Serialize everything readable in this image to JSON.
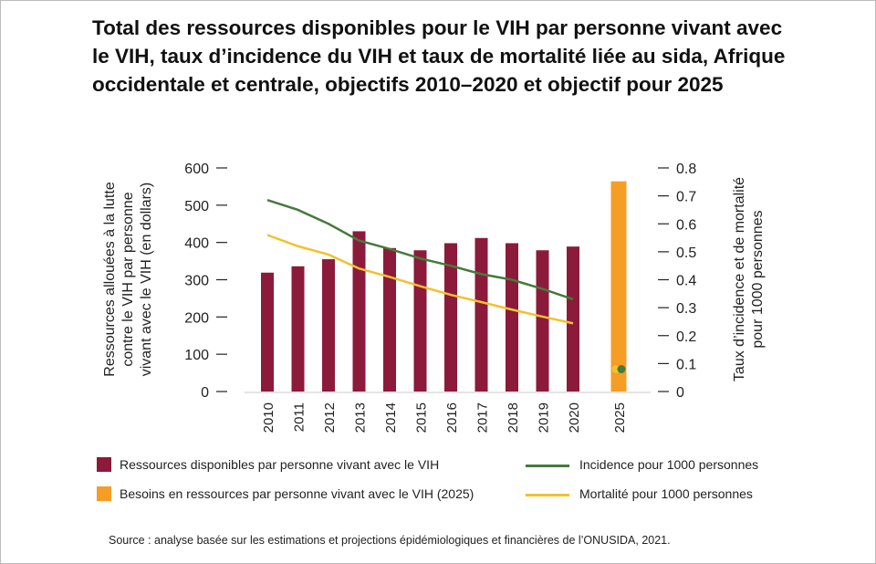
{
  "title": "Total des ressources disponibles pour le VIH par personne vivant avec le VIH, taux d’incidence du VIH et taux de mortalité liée au sida, Afrique occidentale et centrale, objectifs 2010–2020 et objectif pour 2025",
  "source": "Source : analyse basée sur les estimations et projections épidémiologiques et financières de l’ONUSIDA, 2021.",
  "chart_data": {
    "type": "bar",
    "categories": [
      "2010",
      "2011",
      "2012",
      "2013",
      "2014",
      "2015",
      "2016",
      "2017",
      "2018",
      "2019",
      "2020",
      "2025"
    ],
    "ylabel": "Ressources allouées à la lutte contre le VIH par personne vivant avec le VIH (en dollars)",
    "y2label": "Taux d’incidence et de mortalité pour 1000 personnes",
    "ylim": [
      0,
      600
    ],
    "y2lim": [
      0,
      0.8
    ],
    "yticks": [
      "0",
      "100",
      "200",
      "300",
      "400",
      "500",
      "600"
    ],
    "y2ticks": [
      "0",
      "0.1",
      "0.2",
      "0.3",
      "0.4",
      "0.5",
      "0.6",
      "0.7",
      "0.8"
    ],
    "series": [
      {
        "name": "Ressources disponibles par personne vivant avec le VIH",
        "type": "bar",
        "axis": "left",
        "color": "#8c1a3a",
        "values": [
          319,
          336,
          355,
          430,
          385,
          379,
          398,
          412,
          398,
          379,
          389,
          null
        ]
      },
      {
        "name": "Besoins en ressources par personne vivant avec le VIH (2025)",
        "type": "bar",
        "axis": "left",
        "color": "#f59d25",
        "values": [
          null,
          null,
          null,
          null,
          null,
          null,
          null,
          null,
          null,
          null,
          null,
          564
        ]
      },
      {
        "name": "Incidence pour 1000 personnes",
        "type": "line",
        "axis": "right",
        "color": "#467a3c",
        "values": [
          0.685,
          0.65,
          0.6,
          0.54,
          0.51,
          0.476,
          0.45,
          0.42,
          0.4,
          0.367,
          0.33,
          0.08
        ]
      },
      {
        "name": "Mortalité pour 1000 personnes",
        "type": "line",
        "axis": "right",
        "color": "#f2c12e",
        "values": [
          0.56,
          0.52,
          0.49,
          0.44,
          0.41,
          0.377,
          0.346,
          0.32,
          0.293,
          0.268,
          0.244,
          0.08
        ]
      }
    ]
  }
}
